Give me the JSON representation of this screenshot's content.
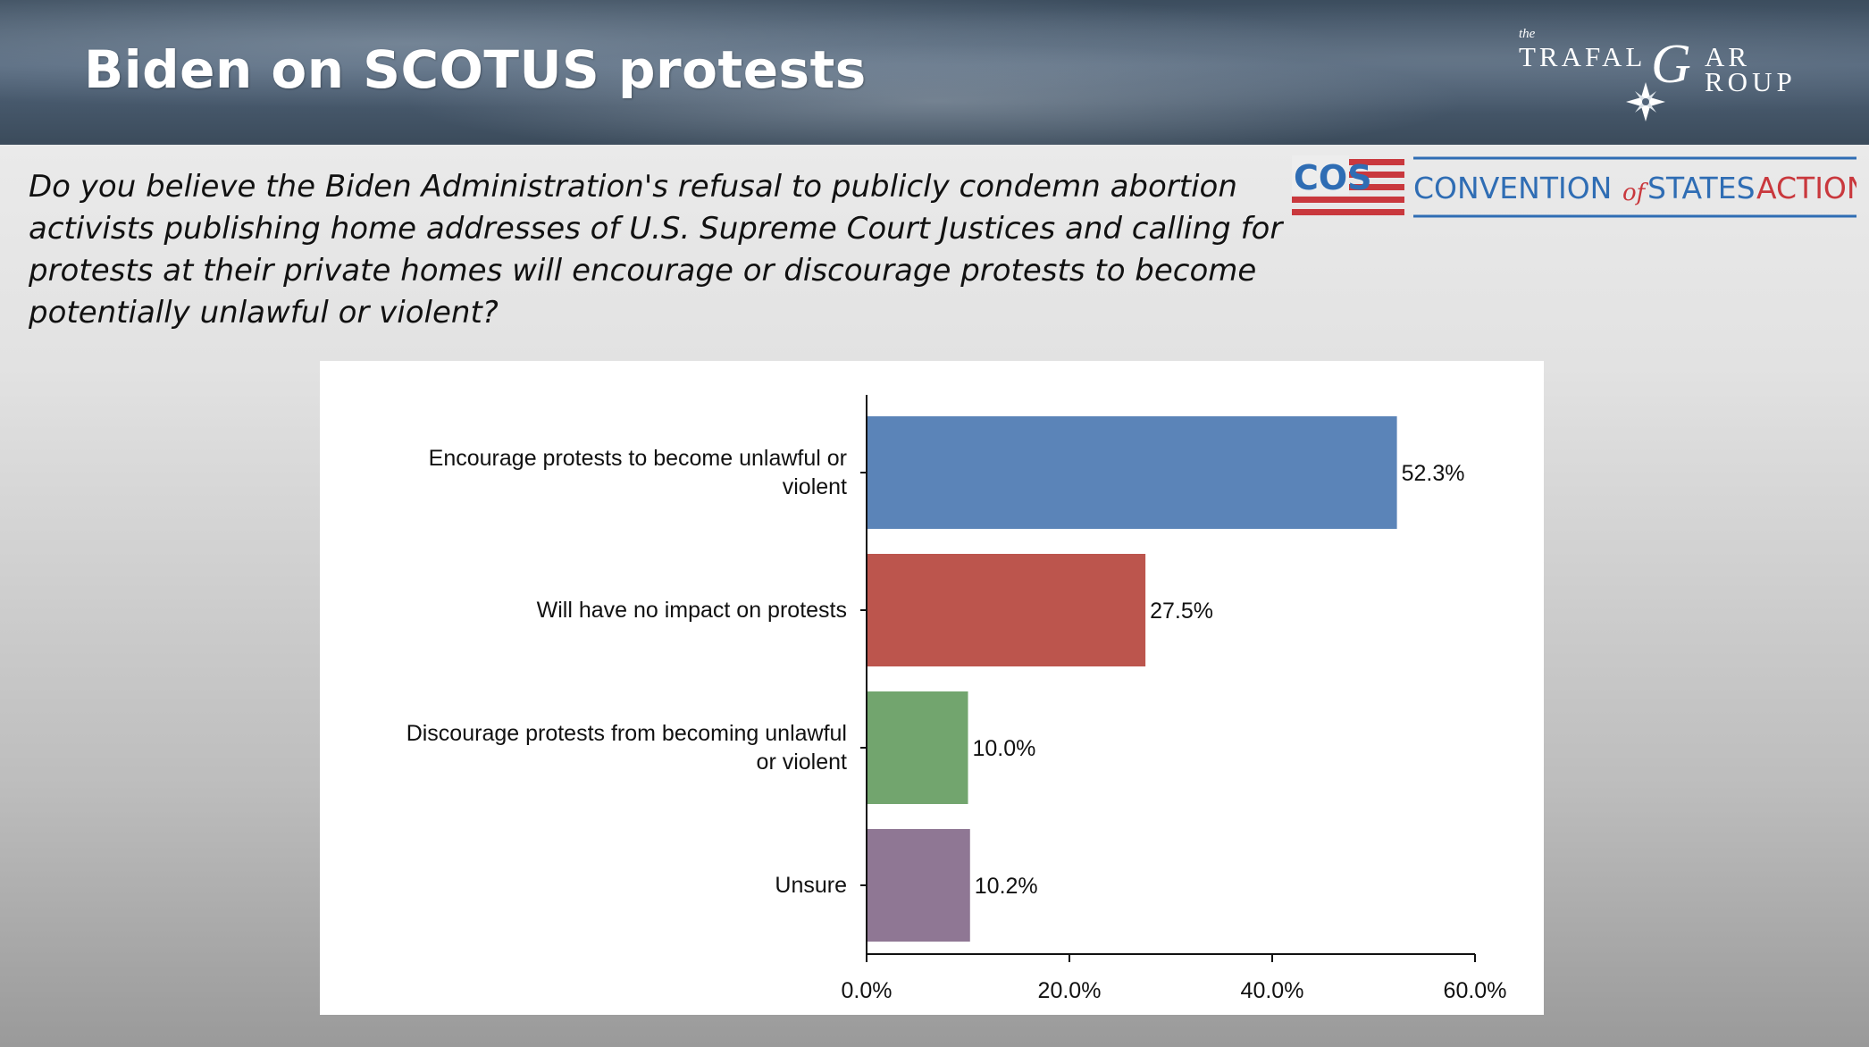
{
  "slide": {
    "title": "Biden on SCOTUS protests",
    "question": "Do you believe the Biden Administration's refusal to publicly condemn abortion activists publishing home addresses of U.S. Supreme Court Justices and calling for protests at their private homes will encourage or discourage protests to become potentially unlawful or violent?"
  },
  "logos": {
    "trafalgar": {
      "the": "the",
      "line1_pre": "TRAFAL",
      "line1_big": "G",
      "line1_post": "AR",
      "line2_big": "G",
      "line2_post": "ROUP"
    },
    "cos": {
      "badge": "COS",
      "word1": "CONVENTION",
      "word2": "of",
      "word3": "STATES",
      "word4": "ACTION"
    }
  },
  "colors": {
    "encourage": "#5b84b8",
    "no_impact": "#bc554d",
    "discourage": "#72a56e",
    "unsure": "#8f7794",
    "cos_blue": "#2f6db4",
    "cos_red": "#c9383d"
  },
  "chart_data": {
    "type": "bar",
    "orientation": "horizontal",
    "categories": [
      [
        "Encourage protests to become unlawful or",
        "violent"
      ],
      [
        "Will have no impact on protests"
      ],
      [
        "Discourage protests from becoming unlawful",
        "or violent"
      ],
      [
        "Unsure"
      ]
    ],
    "values": [
      52.3,
      27.5,
      10.0,
      10.2
    ],
    "value_labels": [
      "52.3%",
      "27.5%",
      "10.0%",
      "10.2%"
    ],
    "bar_colors": [
      "#5b84b8",
      "#bc554d",
      "#72a56e",
      "#8f7794"
    ],
    "xlim": [
      0,
      60
    ],
    "xticks": [
      0,
      20,
      40,
      60
    ],
    "xtick_labels": [
      "0.0%",
      "20.0%",
      "40.0%",
      "60.0%"
    ],
    "title": "",
    "xlabel": "",
    "ylabel": "",
    "grid": false,
    "legend": "none"
  }
}
